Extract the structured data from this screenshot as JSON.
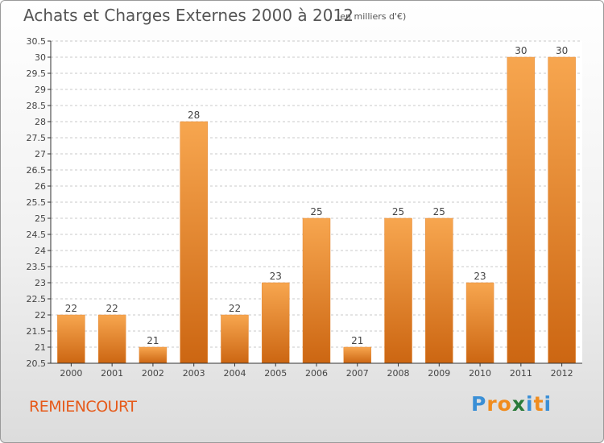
{
  "header": {
    "title": "Achats et Charges Externes 2000 à 2012",
    "subtitle": "(en milliers d'€)"
  },
  "footer": {
    "commune": "REMIENCOURT",
    "logo": {
      "text": "Proxiti",
      "letters": [
        "P",
        "r",
        "o",
        "x",
        "i",
        "t",
        "i"
      ],
      "colors": [
        "#3a8fd6",
        "#f08c1e",
        "#f08c1e",
        "#2a7a3a",
        "#3a8fd6",
        "#f08c1e",
        "#3a8fd6"
      ]
    }
  },
  "colors": {
    "bar_light": "#f7a64f",
    "bar_dark": "#cc6612",
    "axis": "#333333",
    "grid": "#c8c8c8"
  },
  "chart_data": {
    "type": "bar",
    "categories": [
      "2000",
      "2001",
      "2002",
      "2003",
      "2004",
      "2005",
      "2006",
      "2007",
      "2008",
      "2009",
      "2010",
      "2011",
      "2012"
    ],
    "values": [
      22,
      22,
      21,
      28,
      22,
      23,
      25,
      21,
      25,
      25,
      23,
      30,
      30
    ],
    "title": "Achats et Charges Externes 2000 à 2012",
    "ylim": [
      20.5,
      30.5
    ],
    "yticks": [
      "20.5",
      "21",
      "21.5",
      "22",
      "22.5",
      "23",
      "23.5",
      "24",
      "24.5",
      "25",
      "25.5",
      "26",
      "26.5",
      "27",
      "27.5",
      "28",
      "28.5",
      "29",
      "29.5",
      "30",
      "30.5"
    ],
    "grid": true,
    "data_labels": true
  }
}
